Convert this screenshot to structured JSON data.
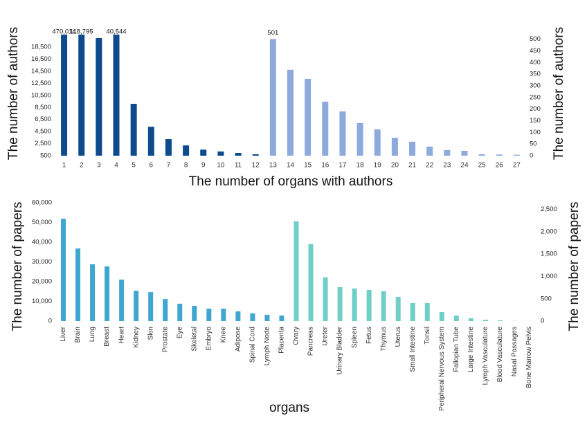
{
  "chart_data": [
    {
      "type": "bar",
      "categories": [
        1,
        2,
        3,
        4,
        5,
        6,
        7,
        8,
        9,
        10,
        11,
        12,
        13,
        14,
        15,
        16,
        17,
        18,
        19,
        20,
        21,
        22,
        23,
        24,
        25,
        26,
        27
      ],
      "series": [
        {
          "color": "#0e4a8c",
          "values": [
            470014,
            118795,
            20000,
            40544,
            9100,
            5300,
            3250,
            2200,
            1500,
            1200,
            960,
            730,
            null,
            null,
            null,
            null,
            null,
            null,
            null,
            null,
            null,
            null,
            null,
            null,
            null,
            null,
            null
          ],
          "value_labels": [
            "470,014",
            "118,795",
            null,
            "40,544",
            null,
            null,
            null,
            null,
            null,
            null,
            null,
            null,
            null,
            null,
            null,
            null,
            null,
            null,
            null,
            null,
            null,
            null,
            null,
            null,
            null,
            null,
            null
          ]
        },
        {
          "color": "#8eaadc",
          "axis": "y2",
          "values": [
            null,
            null,
            null,
            null,
            null,
            null,
            null,
            null,
            null,
            null,
            null,
            null,
            501,
            369,
            330,
            232,
            190,
            140,
            113,
            77,
            60,
            39,
            24,
            21,
            6,
            5,
            4
          ],
          "value_labels": [
            null,
            null,
            null,
            null,
            null,
            null,
            null,
            null,
            null,
            null,
            null,
            null,
            "501",
            null,
            null,
            null,
            null,
            null,
            null,
            null,
            null,
            null,
            null,
            null,
            null,
            null,
            null
          ]
        }
      ],
      "ylim": [
        500,
        20000
      ],
      "yticks": [
        500,
        {
          "value": 2500,
          "label": "2,500"
        },
        {
          "value": 4500,
          "label": "4,500"
        },
        {
          "value": 6500,
          "label": "6,500"
        },
        {
          "value": 8500,
          "label": "8,500"
        },
        {
          "value": 10500,
          "label": "10,500"
        },
        {
          "value": 12500,
          "label": "12,500"
        },
        {
          "value": 14500,
          "label": "14,500"
        },
        {
          "value": 16500,
          "label": "16,500"
        },
        {
          "value": 18500,
          "label": "18,500"
        }
      ],
      "y2lim": [
        0,
        505
      ],
      "y2ticks": [
        0,
        50,
        100,
        150,
        200,
        250,
        300,
        350,
        400,
        450,
        500
      ],
      "ylabel": "The number of authors",
      "y2label": "The number of authors",
      "xlabel": "The number of organs with authors"
    },
    {
      "type": "bar",
      "categories": [
        "Liver",
        "Brain",
        "Lung",
        "Breast",
        "Heart",
        "Kidney",
        "Skin",
        "Prostate",
        "Eye",
        "Skeletal",
        "Embryo",
        "Knee",
        "Adipose",
        "Spinal Cord",
        "Lymph Node",
        "Placenta",
        "Ovary",
        "Pancreas",
        "Ureter",
        "Urinary Bladder",
        "Spleen",
        "Fetus",
        "Thymus",
        "Uterus",
        "Small Intestine",
        "Tonsil",
        "Peripheral Nervous System",
        "Fallopian Tube",
        "Large Intestine",
        "Lymph Vasculature",
        "Blood Vasculature",
        "Nasal Passages",
        "Bone Marrow Pelvis"
      ],
      "series": [
        {
          "color": "#3ea6cf",
          "values": [
            51900,
            36800,
            28800,
            27700,
            21000,
            15400,
            14700,
            11200,
            8800,
            7700,
            6300,
            6300,
            4900,
            3900,
            3200,
            2800,
            null,
            null,
            null,
            null,
            null,
            null,
            null,
            null,
            null,
            null,
            null,
            null,
            null,
            null,
            null,
            null,
            null
          ]
        },
        {
          "color": "#6fcfc6",
          "axis": "y2",
          "values": [
            null,
            null,
            null,
            null,
            null,
            null,
            null,
            null,
            null,
            null,
            null,
            null,
            null,
            null,
            null,
            null,
            2236,
            1724,
            978,
            761,
            730,
            699,
            668,
            543,
            404,
            404,
            202,
            124,
            62,
            31,
            16,
            3,
            2
          ]
        }
      ],
      "ylim": [
        0,
        60000
      ],
      "yticks": [
        0,
        {
          "value": 10000,
          "label": "10,000"
        },
        {
          "value": 20000,
          "label": "20,000"
        },
        {
          "value": 30000,
          "label": "30,000"
        },
        {
          "value": 40000,
          "label": "40,000"
        },
        {
          "value": 50000,
          "label": "50,000"
        },
        {
          "value": 60000,
          "label": "60,000"
        }
      ],
      "y2lim": [
        0,
        2650
      ],
      "y2ticks": [
        0,
        500,
        {
          "value": 1000,
          "label": "1,000"
        },
        {
          "value": 1500,
          "label": "1,500"
        },
        {
          "value": 2000,
          "label": "2,000"
        },
        {
          "value": 2500,
          "label": "2,500"
        }
      ],
      "ylabel": "The number of papers",
      "y2label": "The number of papers",
      "xlabel": "organs"
    }
  ]
}
